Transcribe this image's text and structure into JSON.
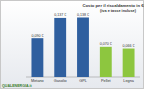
{
  "chart_data": {
    "type": "bar",
    "title": "Costo per il riscaldamento in €/kWh",
    "subtitle": "(iva e tasse incluse)",
    "annotations": [
      "QUALENERGIA.it"
    ],
    "categories": [
      "Metano",
      "Gasolio",
      "GPL",
      "Pellet",
      "Legna"
    ],
    "values": [
      0.09,
      0.137,
      0.138,
      0.07,
      0.066
    ],
    "value_labels": [
      "0,090 €",
      "0,137 €",
      "0,138 €",
      "0,070 €",
      "0,066 €"
    ],
    "colors": [
      "#2f5f9f",
      "#2f5f9f",
      "#2f5f9f",
      "#8dc63f",
      "#8dc63f"
    ],
    "ylim": [
      0,
      0.16
    ],
    "grid": false,
    "data_labels": true,
    "tick_labels": "x"
  }
}
